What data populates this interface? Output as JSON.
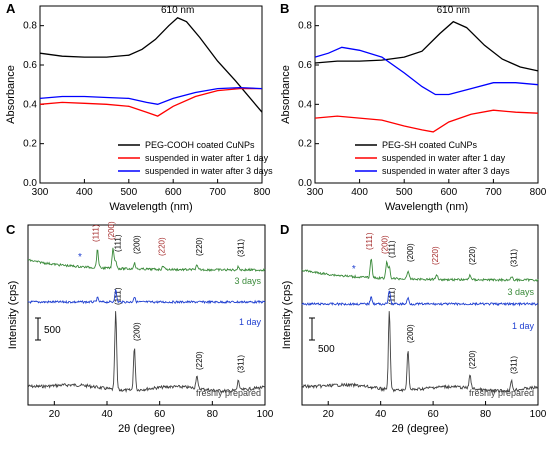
{
  "chart_data": [
    {
      "panel": "A",
      "type": "line",
      "xlabel": "Wavelength (nm)",
      "ylabel": "Absorbance",
      "xlim": [
        300,
        800
      ],
      "ylim": [
        0.0,
        0.9
      ],
      "xticks": [
        300,
        400,
        500,
        600,
        700,
        800
      ],
      "yticks": [
        0.0,
        0.2,
        0.4,
        0.6,
        0.8
      ],
      "annotation": "610 nm",
      "annotation_x": 610,
      "annotation_y": 0.85,
      "legend_position": "bottom-right",
      "series": [
        {
          "name": "PEG-COOH coated CuNPs",
          "color": "#000000",
          "x": [
            300,
            350,
            400,
            450,
            500,
            530,
            560,
            590,
            610,
            630,
            660,
            700,
            740,
            800
          ],
          "y": [
            0.66,
            0.645,
            0.64,
            0.64,
            0.65,
            0.68,
            0.73,
            0.8,
            0.84,
            0.82,
            0.74,
            0.62,
            0.52,
            0.36
          ]
        },
        {
          "name": "suspended in water after 1 day",
          "color": "#ff0000",
          "x": [
            300,
            350,
            400,
            450,
            500,
            540,
            565,
            600,
            650,
            700,
            750,
            800
          ],
          "y": [
            0.4,
            0.41,
            0.405,
            0.4,
            0.39,
            0.36,
            0.34,
            0.39,
            0.44,
            0.47,
            0.48,
            0.48
          ]
        },
        {
          "name": "suspended in water after 3 days",
          "color": "#0000ff",
          "x": [
            300,
            350,
            400,
            450,
            500,
            540,
            565,
            600,
            650,
            700,
            750,
            800
          ],
          "y": [
            0.43,
            0.44,
            0.44,
            0.435,
            0.43,
            0.41,
            0.4,
            0.43,
            0.46,
            0.48,
            0.485,
            0.48
          ]
        }
      ]
    },
    {
      "panel": "B",
      "type": "line",
      "xlabel": "Wavelength (nm)",
      "ylabel": "Absorbance",
      "xlim": [
        300,
        800
      ],
      "ylim": [
        0.0,
        0.9
      ],
      "xticks": [
        300,
        400,
        500,
        600,
        700,
        800
      ],
      "yticks": [
        0.0,
        0.2,
        0.4,
        0.6,
        0.8
      ],
      "annotation": "610 nm",
      "annotation_x": 610,
      "annotation_y": 0.85,
      "legend_position": "bottom-right",
      "series": [
        {
          "name": "PEG-SH coated CuNPs",
          "color": "#000000",
          "x": [
            300,
            350,
            400,
            450,
            500,
            540,
            580,
            610,
            640,
            680,
            720,
            760,
            800
          ],
          "y": [
            0.61,
            0.62,
            0.62,
            0.625,
            0.64,
            0.67,
            0.76,
            0.82,
            0.79,
            0.7,
            0.63,
            0.59,
            0.57
          ]
        },
        {
          "name": "suspended in water after 1 day",
          "color": "#ff0000",
          "x": [
            300,
            350,
            400,
            450,
            500,
            540,
            565,
            600,
            650,
            700,
            750,
            800
          ],
          "y": [
            0.33,
            0.34,
            0.33,
            0.32,
            0.29,
            0.27,
            0.26,
            0.31,
            0.35,
            0.37,
            0.36,
            0.355
          ]
        },
        {
          "name": "suspended in water after 3 days",
          "color": "#0000ff",
          "x": [
            300,
            330,
            360,
            400,
            450,
            500,
            540,
            570,
            600,
            650,
            700,
            750,
            800
          ],
          "y": [
            0.64,
            0.66,
            0.69,
            0.675,
            0.64,
            0.56,
            0.49,
            0.45,
            0.45,
            0.48,
            0.51,
            0.51,
            0.5
          ]
        }
      ]
    },
    {
      "panel": "C",
      "type": "line",
      "xlabel": "2θ (degree)",
      "ylabel": "Intensity (cps)",
      "xlim": [
        10,
        100
      ],
      "xticks": [
        20,
        40,
        60,
        80,
        100
      ],
      "scale_bar_label": "500",
      "traces": [
        {
          "name": "freshly prepared",
          "color": "#404040",
          "peaks": [
            {
              "x": 43.3,
              "h": 78,
              "label": "(111)"
            },
            {
              "x": 50.4,
              "h": 42,
              "label": "(200)"
            },
            {
              "x": 74.1,
              "h": 13,
              "label": "(220)"
            },
            {
              "x": 89.9,
              "h": 10,
              "label": "(311)"
            }
          ]
        },
        {
          "name": "1 day",
          "color": "#1f3fd0",
          "peaks": [
            {
              "x": 36.4,
              "h": 4
            },
            {
              "x": 43.3,
              "h": 12
            },
            {
              "x": 50.4,
              "h": 5
            }
          ]
        },
        {
          "name": "3 days",
          "color": "#3a8a3a",
          "peaks": [
            {
              "x": 36.4,
              "h": 18,
              "label": "(111)",
              "label_color": "#a52a2a"
            },
            {
              "x": 42.3,
              "h": 20,
              "label": "(200)",
              "label_color": "#a52a2a"
            },
            {
              "x": 43.3,
              "h": 8,
              "label": "(111)"
            },
            {
              "x": 50.4,
              "h": 6,
              "label": "(200)"
            },
            {
              "x": 61.4,
              "h": 4,
              "label": "(220)",
              "label_color": "#a52a2a"
            },
            {
              "x": 74.1,
              "h": 4,
              "label": "(220)"
            },
            {
              "x": 89.9,
              "h": 3,
              "label": "(311)"
            }
          ]
        }
      ]
    },
    {
      "panel": "D",
      "type": "line",
      "xlabel": "2θ (degree)",
      "ylabel": "Intensity (cps)",
      "xlim": [
        10,
        100
      ],
      "xticks": [
        20,
        40,
        60,
        80,
        100
      ],
      "scale_bar_label": "500",
      "traces": [
        {
          "name": "freshly prepared",
          "color": "#404040",
          "peaks": [
            {
              "x": 43.3,
              "h": 78,
              "label": "(111)"
            },
            {
              "x": 50.4,
              "h": 40,
              "label": "(200)"
            },
            {
              "x": 74.1,
              "h": 14,
              "label": "(220)"
            },
            {
              "x": 89.9,
              "h": 9,
              "label": "(311)"
            }
          ]
        },
        {
          "name": "1 day",
          "color": "#1f3fd0",
          "peaks": [
            {
              "x": 36.4,
              "h": 8
            },
            {
              "x": 43.3,
              "h": 14
            },
            {
              "x": 50.4,
              "h": 6
            }
          ]
        },
        {
          "name": "3 days",
          "color": "#3a8a3a",
          "peaks": [
            {
              "x": 36.4,
              "h": 20,
              "label": "(111)",
              "label_color": "#a52a2a"
            },
            {
              "x": 42.3,
              "h": 16,
              "label": "(200)",
              "label_color": "#a52a2a"
            },
            {
              "x": 43.3,
              "h": 12,
              "label": "(111)"
            },
            {
              "x": 50.4,
              "h": 8,
              "label": "(200)"
            },
            {
              "x": 61.4,
              "h": 5,
              "label": "(220)",
              "label_color": "#a52a2a"
            },
            {
              "x": 74.1,
              "h": 5,
              "label": "(220)"
            },
            {
              "x": 89.9,
              "h": 3,
              "label": "(311)"
            }
          ]
        }
      ]
    }
  ]
}
